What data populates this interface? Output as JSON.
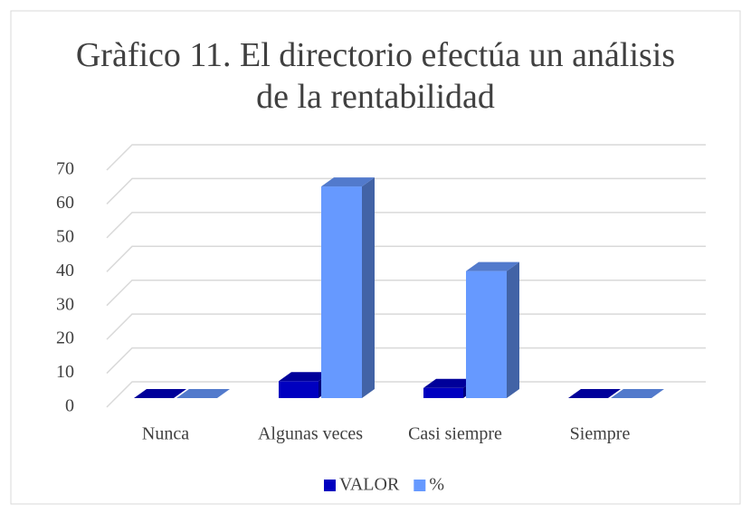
{
  "chart_data": {
    "type": "bar3d",
    "title": "Gràfico 11. El directorio efectúa un análisis de la rentabilidad",
    "categories": [
      "Nunca",
      "Algunas veces",
      "Casi siempre",
      "Siempre"
    ],
    "series": [
      {
        "name": "VALOR",
        "color": "#0000c0",
        "values": [
          0,
          5,
          3,
          0
        ]
      },
      {
        "name": "%",
        "color": "#6699ff",
        "values": [
          0,
          62.5,
          37.5,
          0
        ]
      }
    ],
    "ylim": [
      0,
      70
    ],
    "yticks": [
      0,
      10,
      20,
      30,
      40,
      50,
      60,
      70
    ],
    "grid": true,
    "legend": "bottom"
  }
}
